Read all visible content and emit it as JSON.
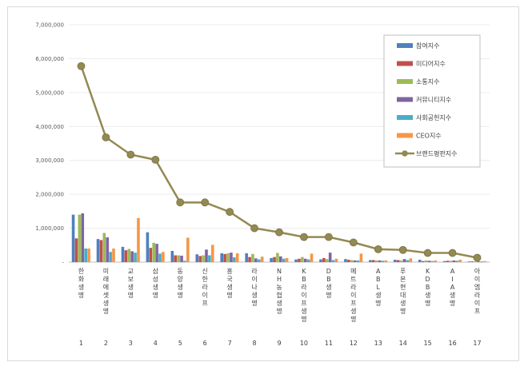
{
  "chart_data": {
    "type": "bar",
    "title": "",
    "xlabel": "",
    "ylabel": "",
    "ylim": [
      0,
      7000000
    ],
    "yticks": [
      "-",
      "1,000,000",
      "2,000,000",
      "3,000,000",
      "4,000,000",
      "5,000,000",
      "6,000,000",
      "7,000,000"
    ],
    "categories": [
      "한화생명",
      "미래에셋생명",
      "교보생명",
      "삼성생명",
      "동양생명",
      "신한라이프",
      "흥국생명",
      "라이나생명",
      "NH농협생명",
      "KB라이프생명",
      "DB생명",
      "메트라이프생명",
      "ABL생명",
      "푸본현대생명",
      "KDB생명",
      "AIA생명",
      "아이엠라이프"
    ],
    "ranks": [
      "1",
      "2",
      "3",
      "4",
      "5",
      "6",
      "7",
      "8",
      "9",
      "10",
      "11",
      "12",
      "13",
      "14",
      "15",
      "16",
      "17"
    ],
    "legend_position": "top-right",
    "grid": true,
    "series": [
      {
        "name": "참여지수",
        "kind": "bar",
        "color": "#4f81bd",
        "values": [
          1400000,
          680000,
          450000,
          880000,
          330000,
          230000,
          260000,
          260000,
          120000,
          80000,
          80000,
          90000,
          60000,
          70000,
          70000,
          30000,
          20000
        ]
      },
      {
        "name": "미디어지수",
        "kind": "bar",
        "color": "#c0504d",
        "values": [
          700000,
          650000,
          350000,
          420000,
          200000,
          180000,
          240000,
          150000,
          150000,
          100000,
          120000,
          70000,
          60000,
          60000,
          30000,
          40000,
          20000
        ]
      },
      {
        "name": "소통지수",
        "kind": "bar",
        "color": "#9bbb59",
        "values": [
          1400000,
          860000,
          390000,
          570000,
          200000,
          200000,
          260000,
          240000,
          270000,
          150000,
          90000,
          60000,
          50000,
          50000,
          50000,
          40000,
          20000
        ]
      },
      {
        "name": "커뮤니티지수",
        "kind": "bar",
        "color": "#8064a2",
        "values": [
          1440000,
          730000,
          320000,
          540000,
          190000,
          370000,
          280000,
          110000,
          170000,
          100000,
          280000,
          50000,
          50000,
          90000,
          40000,
          50000,
          20000
        ]
      },
      {
        "name": "사회공헌지수",
        "kind": "bar",
        "color": "#4bacc6",
        "values": [
          400000,
          300000,
          280000,
          250000,
          40000,
          200000,
          140000,
          80000,
          100000,
          80000,
          60000,
          50000,
          40000,
          60000,
          30000,
          40000,
          20000
        ]
      },
      {
        "name": "CEO지수",
        "kind": "bar",
        "color": "#f79646",
        "values": [
          400000,
          400000,
          1300000,
          300000,
          720000,
          510000,
          260000,
          160000,
          120000,
          250000,
          100000,
          250000,
          50000,
          110000,
          50000,
          70000,
          30000
        ]
      },
      {
        "name": "브랜드평판지수",
        "kind": "line",
        "color": "#938953",
        "values": [
          5780000,
          3680000,
          3170000,
          3020000,
          1760000,
          1760000,
          1480000,
          1000000,
          880000,
          740000,
          740000,
          580000,
          380000,
          360000,
          270000,
          270000,
          130000
        ]
      }
    ]
  }
}
